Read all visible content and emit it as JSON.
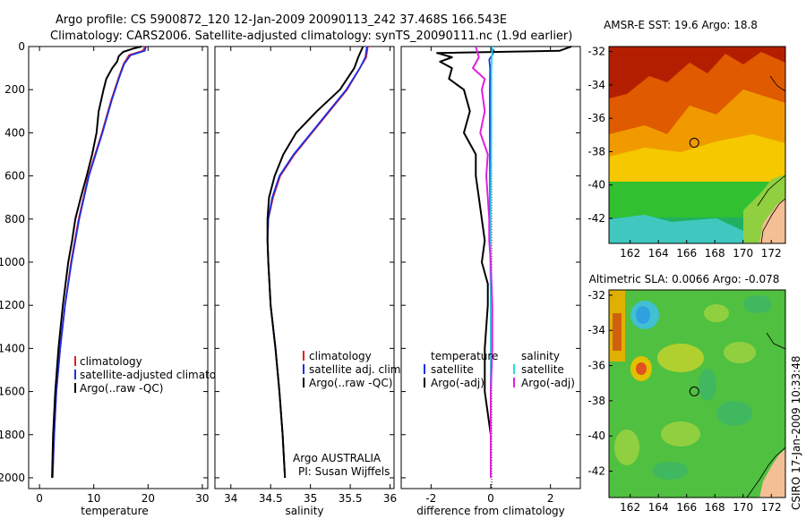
{
  "header": {
    "line1": "Argo profile: CS 5900872_120 12-Jan-2009 20090113_242 37.468S 166.543E",
    "line2": "Climatology: CARS2006. Satellite-adjusted climatology: synTS_20090111.nc (1.9d earlier)"
  },
  "colors": {
    "climatology": "#e02020",
    "satellite": "#1a2ee8",
    "argo": "#000000",
    "salinity_satellite": "#20e0e0",
    "salinity_argo": "#e020e0"
  },
  "y_axis": {
    "label": "",
    "ticks": [
      "0",
      "200",
      "400",
      "600",
      "800",
      "1000",
      "1200",
      "1400",
      "1600",
      "1800",
      "2000"
    ]
  },
  "chart_data": [
    {
      "type": "line",
      "name": "temperature",
      "xlabel": "temperature",
      "xticks": [
        "0",
        "10",
        "20",
        "30"
      ],
      "xlim": [
        -2,
        31
      ],
      "ylim": [
        2050,
        0
      ],
      "legend": [
        "climatology",
        "satellite-adjusted climatology",
        "Argo(..raw -QC)"
      ],
      "series": [
        {
          "name": "climatology",
          "depth": [
            0,
            20,
            40,
            80,
            150,
            250,
            400,
            600,
            800,
            1000,
            1200,
            1400,
            1600,
            1800,
            2000
          ],
          "values": [
            19.5,
            19.0,
            16.5,
            15.5,
            14.5,
            13.2,
            11.5,
            9.0,
            7.2,
            5.8,
            4.7,
            3.8,
            3.1,
            2.7,
            2.4
          ]
        },
        {
          "name": "satellite-adjusted climatology",
          "depth": [
            0,
            20,
            40,
            80,
            150,
            250,
            400,
            600,
            800,
            1000,
            1200,
            1400,
            1600,
            1800,
            2000
          ],
          "values": [
            19.6,
            19.4,
            16.8,
            15.6,
            14.6,
            13.3,
            11.6,
            9.1,
            7.3,
            5.9,
            4.7,
            3.8,
            3.1,
            2.7,
            2.4
          ]
        },
        {
          "name": "Argo(..raw -QC)",
          "depth": [
            0,
            10,
            25,
            45,
            70,
            100,
            150,
            200,
            300,
            400,
            500,
            600,
            700,
            800,
            900,
            1000,
            1200,
            1400,
            1600,
            1800,
            2000
          ],
          "values": [
            18.8,
            17.2,
            15.4,
            14.6,
            14.3,
            13.4,
            12.3,
            11.8,
            10.9,
            10.5,
            9.7,
            8.7,
            7.6,
            6.6,
            6.0,
            5.3,
            4.3,
            3.5,
            2.9,
            2.5,
            2.3
          ]
        }
      ]
    },
    {
      "type": "line",
      "name": "salinity",
      "xlabel": "salinity",
      "xticks": [
        "34",
        "34.5",
        "35",
        "35.5",
        "36"
      ],
      "xlim": [
        33.8,
        36.05
      ],
      "ylim": [
        2050,
        0
      ],
      "legend": [
        "climatology",
        "satellite adj. clim.",
        "Argo(..raw -QC)"
      ],
      "annotation": [
        "Argo AUSTRALIA",
        "PI: Susan Wijffels"
      ],
      "series": [
        {
          "name": "climatology",
          "depth": [
            0,
            50,
            100,
            200,
            300,
            400,
            500,
            600,
            700,
            800,
            900,
            1000,
            1200,
            1400,
            1600,
            1800,
            2000
          ],
          "values": [
            35.72,
            35.7,
            35.62,
            35.46,
            35.24,
            35.02,
            34.8,
            34.62,
            34.53,
            34.47,
            34.46,
            34.47,
            34.5,
            34.56,
            34.61,
            34.65,
            34.68
          ]
        },
        {
          "name": "satellite adj. clim.",
          "depth": [
            0,
            50,
            100,
            200,
            300,
            400,
            500,
            600,
            700,
            800,
            900,
            1000,
            1200,
            1400,
            1600,
            1800,
            2000
          ],
          "values": [
            35.71,
            35.69,
            35.62,
            35.45,
            35.23,
            35.01,
            34.79,
            34.61,
            34.52,
            34.47,
            34.46,
            34.47,
            34.5,
            34.56,
            34.61,
            34.65,
            34.68
          ]
        },
        {
          "name": "Argo(..raw -QC)",
          "depth": [
            0,
            50,
            100,
            200,
            300,
            400,
            500,
            600,
            700,
            800,
            900,
            1000,
            1200,
            1400,
            1600,
            1800,
            2000
          ],
          "values": [
            35.66,
            35.6,
            35.55,
            35.37,
            35.08,
            34.82,
            34.66,
            34.55,
            34.48,
            34.46,
            34.46,
            34.47,
            34.5,
            34.56,
            34.61,
            34.65,
            34.68
          ]
        }
      ]
    },
    {
      "type": "line",
      "name": "difference",
      "xlabel": "difference from climatology",
      "xticks": [
        "-2",
        "0",
        "2"
      ],
      "xlim": [
        -3.0,
        3.0
      ],
      "ylim": [
        2050,
        0
      ],
      "legend_temperature": {
        "title": "temperature",
        "items": [
          "satellite",
          "Argo(-adj)"
        ]
      },
      "legend_salinity": {
        "title": "salinity",
        "items": [
          "satellite",
          "Argo(-adj)"
        ]
      },
      "series": [
        {
          "name": "temperature satellite",
          "depth": [
            0,
            20,
            40,
            60,
            100,
            200,
            400,
            800,
            1200,
            1600,
            2000
          ],
          "values": [
            0.0,
            0.1,
            0.05,
            -0.05,
            -0.02,
            -0.03,
            -0.03,
            -0.02,
            0.0,
            0.0,
            0.0
          ]
        },
        {
          "name": "temperature Argo(-adj)",
          "depth": [
            0,
            20,
            30,
            50,
            70,
            100,
            150,
            200,
            300,
            400,
            500,
            600,
            700,
            800,
            900,
            1000,
            1100,
            1200,
            1400,
            1600,
            1800,
            2000
          ],
          "values": [
            2.7,
            2.3,
            -1.8,
            -1.3,
            -1.7,
            -1.3,
            -1.4,
            -0.9,
            -0.7,
            -0.9,
            -0.5,
            -0.5,
            -0.4,
            -0.3,
            -0.2,
            -0.3,
            -0.1,
            -0.1,
            -0.2,
            -0.2,
            0.0,
            0.0
          ]
        },
        {
          "name": "salinity satellite",
          "depth": [
            0,
            100,
            400,
            800,
            1200,
            1600,
            2000
          ],
          "values": [
            0.05,
            0.02,
            0.02,
            0.0,
            0.0,
            0.0,
            0.0
          ]
        },
        {
          "name": "salinity Argo(-adj)",
          "depth": [
            0,
            50,
            100,
            150,
            200,
            300,
            400,
            500,
            600,
            700,
            800,
            900,
            1000,
            1200,
            1400,
            1600,
            1800,
            2000
          ],
          "values": [
            -0.5,
            -0.4,
            -0.6,
            -0.2,
            -0.3,
            -0.2,
            -0.35,
            -0.1,
            -0.15,
            -0.1,
            -0.05,
            -0.05,
            0.0,
            0.05,
            0.05,
            0.0,
            0.0,
            0.0
          ]
        }
      ]
    }
  ],
  "maps": [
    {
      "title": "AMSR-E SST: 19.6 Argo: 18.8",
      "lat_ticks": [
        "-32",
        "-34",
        "-36",
        "-38",
        "-40",
        "-42"
      ],
      "lon_ticks": [
        "162",
        "164",
        "166",
        "168",
        "170",
        "172"
      ],
      "marker": {
        "lon": 166.543,
        "lat": -37.468
      }
    },
    {
      "title": "Altimetric SLA: 0.0066 Argo: -0.078",
      "lat_ticks": [
        "-32",
        "-34",
        "-36",
        "-38",
        "-40",
        "-42"
      ],
      "lon_ticks": [
        "162",
        "164",
        "166",
        "168",
        "170",
        "172"
      ],
      "marker": {
        "lon": 166.543,
        "lat": -37.468
      }
    }
  ],
  "footer": {
    "credit": "CSIRO 17-Jan-2009 10:33:48"
  }
}
